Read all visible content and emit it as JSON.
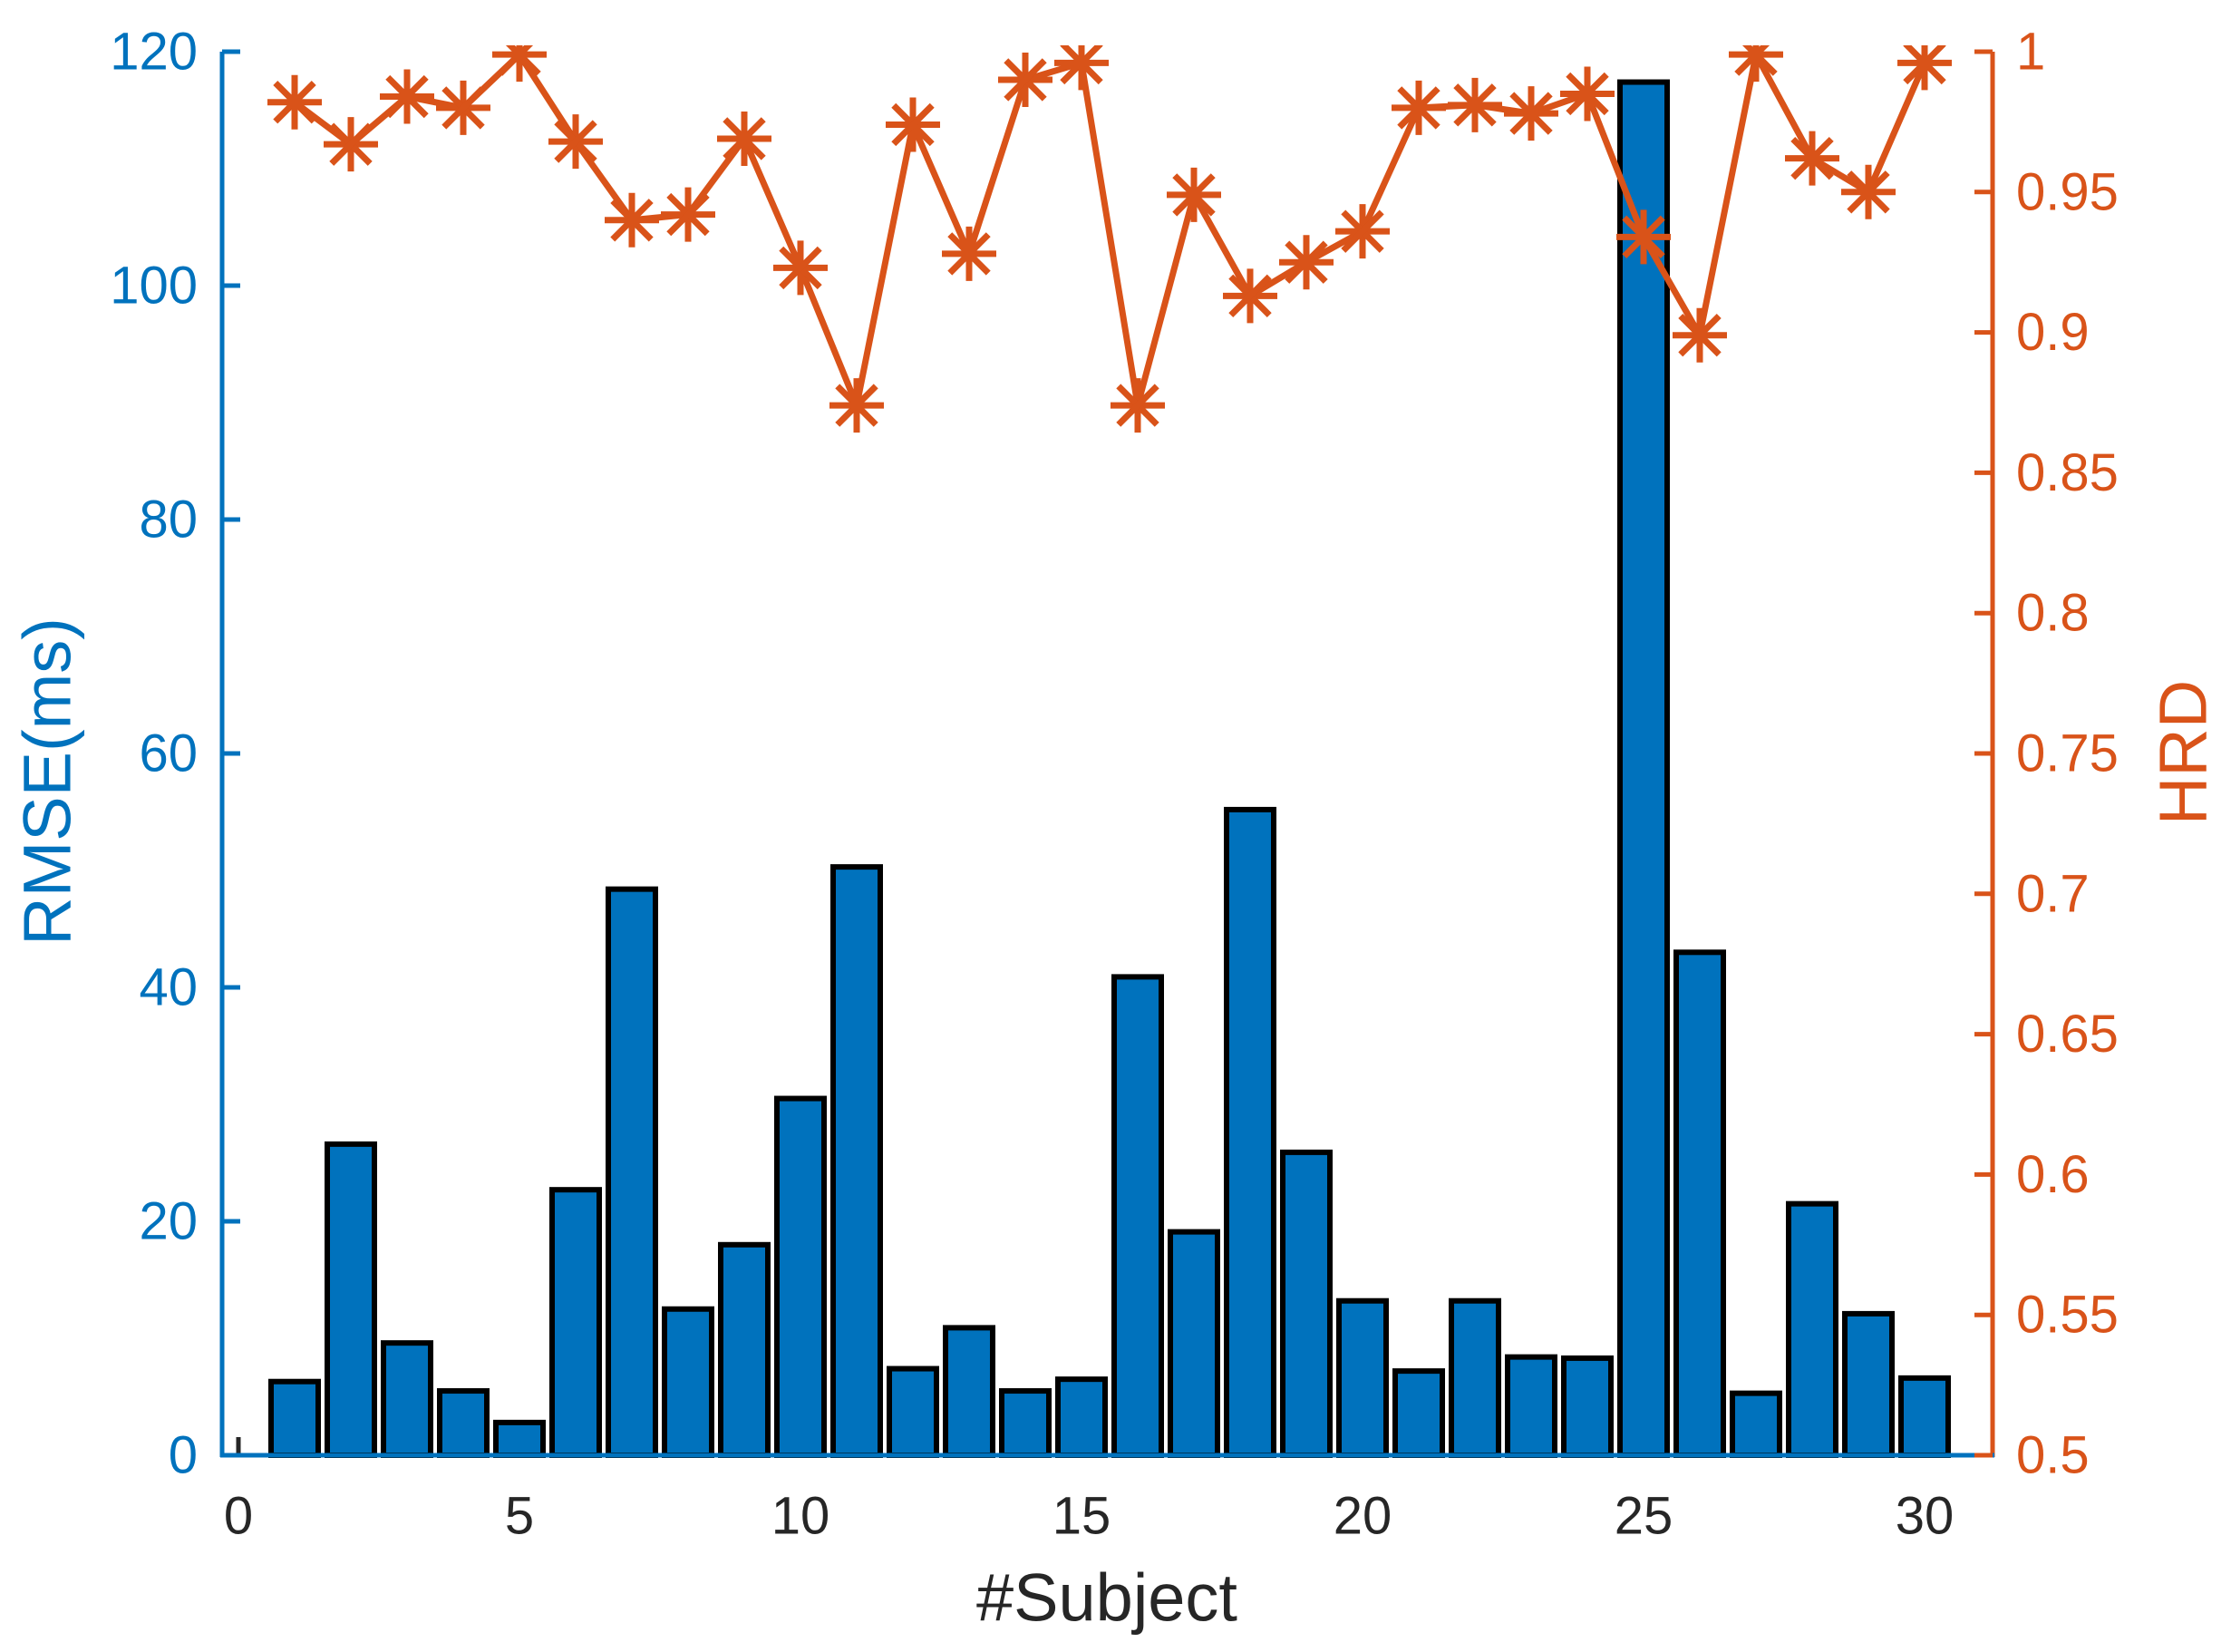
{
  "figure": {
    "kind": "matlab-style dual y-axis figure",
    "background": "#ffffff"
  },
  "chart_data": {
    "type": "bar+line",
    "title": "",
    "x": [
      1,
      2,
      3,
      4,
      5,
      6,
      7,
      8,
      9,
      10,
      11,
      12,
      13,
      14,
      15,
      16,
      17,
      18,
      19,
      20,
      21,
      22,
      23,
      24,
      25,
      26,
      27,
      28,
      29,
      30
    ],
    "series": [
      {
        "name": "RMSE",
        "type": "bar",
        "axis": "left",
        "color": "#0072BD",
        "edge_color": "#000000",
        "values": [
          6.3,
          26.6,
          9.6,
          5.5,
          2.8,
          22.7,
          48.4,
          12.5,
          18.0,
          30.5,
          50.3,
          7.4,
          10.9,
          5.5,
          6.5,
          40.9,
          19.1,
          55.2,
          25.9,
          13.2,
          7.2,
          13.2,
          8.4,
          8.3,
          117.4,
          43.0,
          5.3,
          21.5,
          12.1,
          6.6
        ]
      },
      {
        "name": "HRD",
        "type": "line",
        "axis": "right",
        "color": "#D95319",
        "marker": "asterisk",
        "values": [
          0.982,
          0.967,
          0.984,
          0.98,
          0.999,
          0.968,
          0.94,
          0.942,
          0.969,
          0.923,
          0.874,
          0.974,
          0.928,
          0.99,
          0.996,
          0.874,
          0.949,
          0.913,
          0.925,
          0.936,
          0.98,
          0.981,
          0.978,
          0.985,
          0.934,
          0.899,
          0.999,
          0.962,
          0.95,
          0.996
        ]
      }
    ],
    "left_axis": {
      "label": "RMSE(ms)",
      "color": "#0072BD",
      "min": 0,
      "max": 120,
      "tick_values": [
        0,
        20,
        40,
        60,
        80,
        100,
        120
      ],
      "tick_labels": [
        "0",
        "20",
        "40",
        "60",
        "80",
        "100",
        "120"
      ]
    },
    "right_axis": {
      "label": "HRD",
      "color": "#D95319",
      "min": 0.5,
      "max": 1.0,
      "tick_values": [
        0.5,
        0.55,
        0.6,
        0.65,
        0.7,
        0.75,
        0.8,
        0.85,
        0.9,
        0.95,
        1
      ],
      "tick_labels": [
        "0.5",
        "0.55",
        "0.6",
        "0.65",
        "0.7",
        "0.75",
        "0.8",
        "0.85",
        "0.9",
        "0.95",
        "1"
      ]
    },
    "x_axis": {
      "label": "#Subject",
      "color": "#262626",
      "range": [
        -0.3,
        31.2
      ],
      "tick_values": [
        0,
        5,
        10,
        15,
        20,
        25,
        30
      ],
      "tick_labels": [
        "0",
        "5",
        "10",
        "15",
        "20",
        "25",
        "30"
      ]
    },
    "grid": false,
    "legend": false
  }
}
